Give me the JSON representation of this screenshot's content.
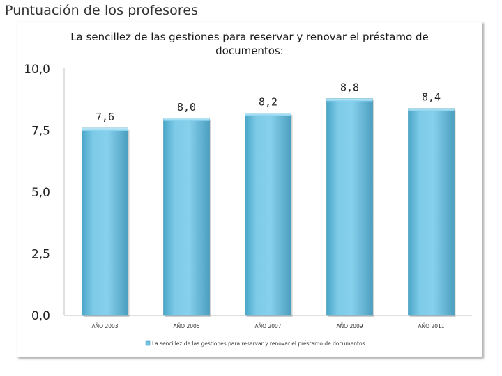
{
  "page": {
    "title": "Puntuación de los profesores"
  },
  "chart_data": {
    "type": "bar",
    "title_lines": [
      "La sencillez de las gestiones para reservar y renovar el préstamo de",
      "documentos:"
    ],
    "categories": [
      "AÑO 2003",
      "AÑO 2005",
      "AÑO 2007",
      "AÑO 2009",
      "AÑO 2011"
    ],
    "series": [
      {
        "name": "La sencillez de las gestiones para reservar y renovar el préstamo de documentos:",
        "values": [
          7.6,
          8.0,
          8.2,
          8.8,
          8.4
        ],
        "labels": [
          "7,6",
          "8,0",
          "8,2",
          "8,8",
          "8,4"
        ],
        "color": "#6fc3e3"
      }
    ],
    "ylim": [
      0,
      10
    ],
    "yticks": [
      0,
      2.5,
      5,
      7.5,
      10
    ],
    "ytick_labels": [
      "0,0",
      "2,5",
      "5,0",
      "7,5",
      "10,0"
    ],
    "xlabel": "",
    "ylabel": "",
    "legend_position": "bottom",
    "grid": false
  }
}
